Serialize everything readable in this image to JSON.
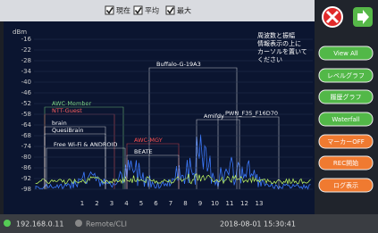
{
  "header": {
    "checkboxes": [
      "現在",
      "平均",
      "最大"
    ]
  },
  "chart": {
    "y_unit": "dBm",
    "y_labels": [
      "-16",
      "-22",
      "-28",
      "-34",
      "-40",
      "-46",
      "-52",
      "-58",
      "-64",
      "-68",
      "-74",
      "-80",
      "-86",
      "-92",
      "-98"
    ],
    "x_labels": [
      "1",
      "2",
      "3",
      "4",
      "5",
      "6",
      "7",
      "8",
      "9",
      "10",
      "11",
      "12",
      "13"
    ],
    "networks": [
      "Buffalo-G-19A3",
      "AWC-Member",
      "NTT-Guest",
      "brain",
      "QuesiBrain",
      "AWC-MGY",
      "Free Wi-Fi & ANDROID",
      "BEATE",
      "Amifdy",
      "PWN_F35_F16D70"
    ],
    "message": [
      "周波数と振幅",
      "情報表示の上に",
      "カーソルを置いて",
      "ください"
    ]
  },
  "menu": {
    "buttons": [
      "View All",
      "レベルグラフ",
      "履歴グラフ",
      "Waterfall",
      "マーカーOFF",
      "REC開始",
      "ログ表示"
    ]
  },
  "status": {
    "ip": "192.168.0.11",
    "mode": "Remote/CLI",
    "datetime": "2018-08-01  15:30:41"
  }
}
